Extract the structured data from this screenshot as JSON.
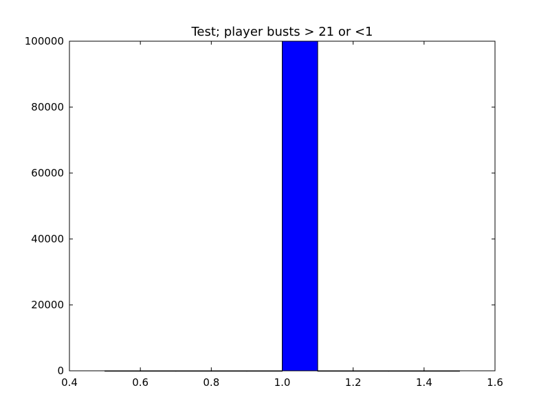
{
  "chart_data": {
    "type": "bar",
    "title": "Test; player busts > 21 or <1",
    "xlabel": "",
    "ylabel": "",
    "xlim": [
      0.4,
      1.6
    ],
    "ylim": [
      0,
      100000
    ],
    "x_ticks": [
      0.4,
      0.6,
      0.8,
      1.0,
      1.2,
      1.4,
      1.6
    ],
    "x_tick_labels": [
      "0.4",
      "0.6",
      "0.8",
      "1.0",
      "1.2",
      "1.4",
      "1.6"
    ],
    "y_ticks": [
      0,
      20000,
      40000,
      60000,
      80000,
      100000
    ],
    "y_tick_labels": [
      "0",
      "20000",
      "40000",
      "60000",
      "80000",
      "100000"
    ],
    "grid": false,
    "bar_color": "#0000ff",
    "bar_edge_color": "#000000",
    "bins": [
      {
        "x_start": 0.5,
        "x_end": 0.6,
        "value": 0
      },
      {
        "x_start": 0.6,
        "x_end": 0.7,
        "value": 0
      },
      {
        "x_start": 0.7,
        "x_end": 0.8,
        "value": 0
      },
      {
        "x_start": 0.8,
        "x_end": 0.9,
        "value": 0
      },
      {
        "x_start": 0.9,
        "x_end": 1.0,
        "value": 0
      },
      {
        "x_start": 1.0,
        "x_end": 1.1,
        "value": 100000
      },
      {
        "x_start": 1.1,
        "x_end": 1.2,
        "value": 0
      },
      {
        "x_start": 1.2,
        "x_end": 1.3,
        "value": 0
      },
      {
        "x_start": 1.3,
        "x_end": 1.4,
        "value": 0
      },
      {
        "x_start": 1.4,
        "x_end": 1.5,
        "value": 0
      }
    ]
  }
}
